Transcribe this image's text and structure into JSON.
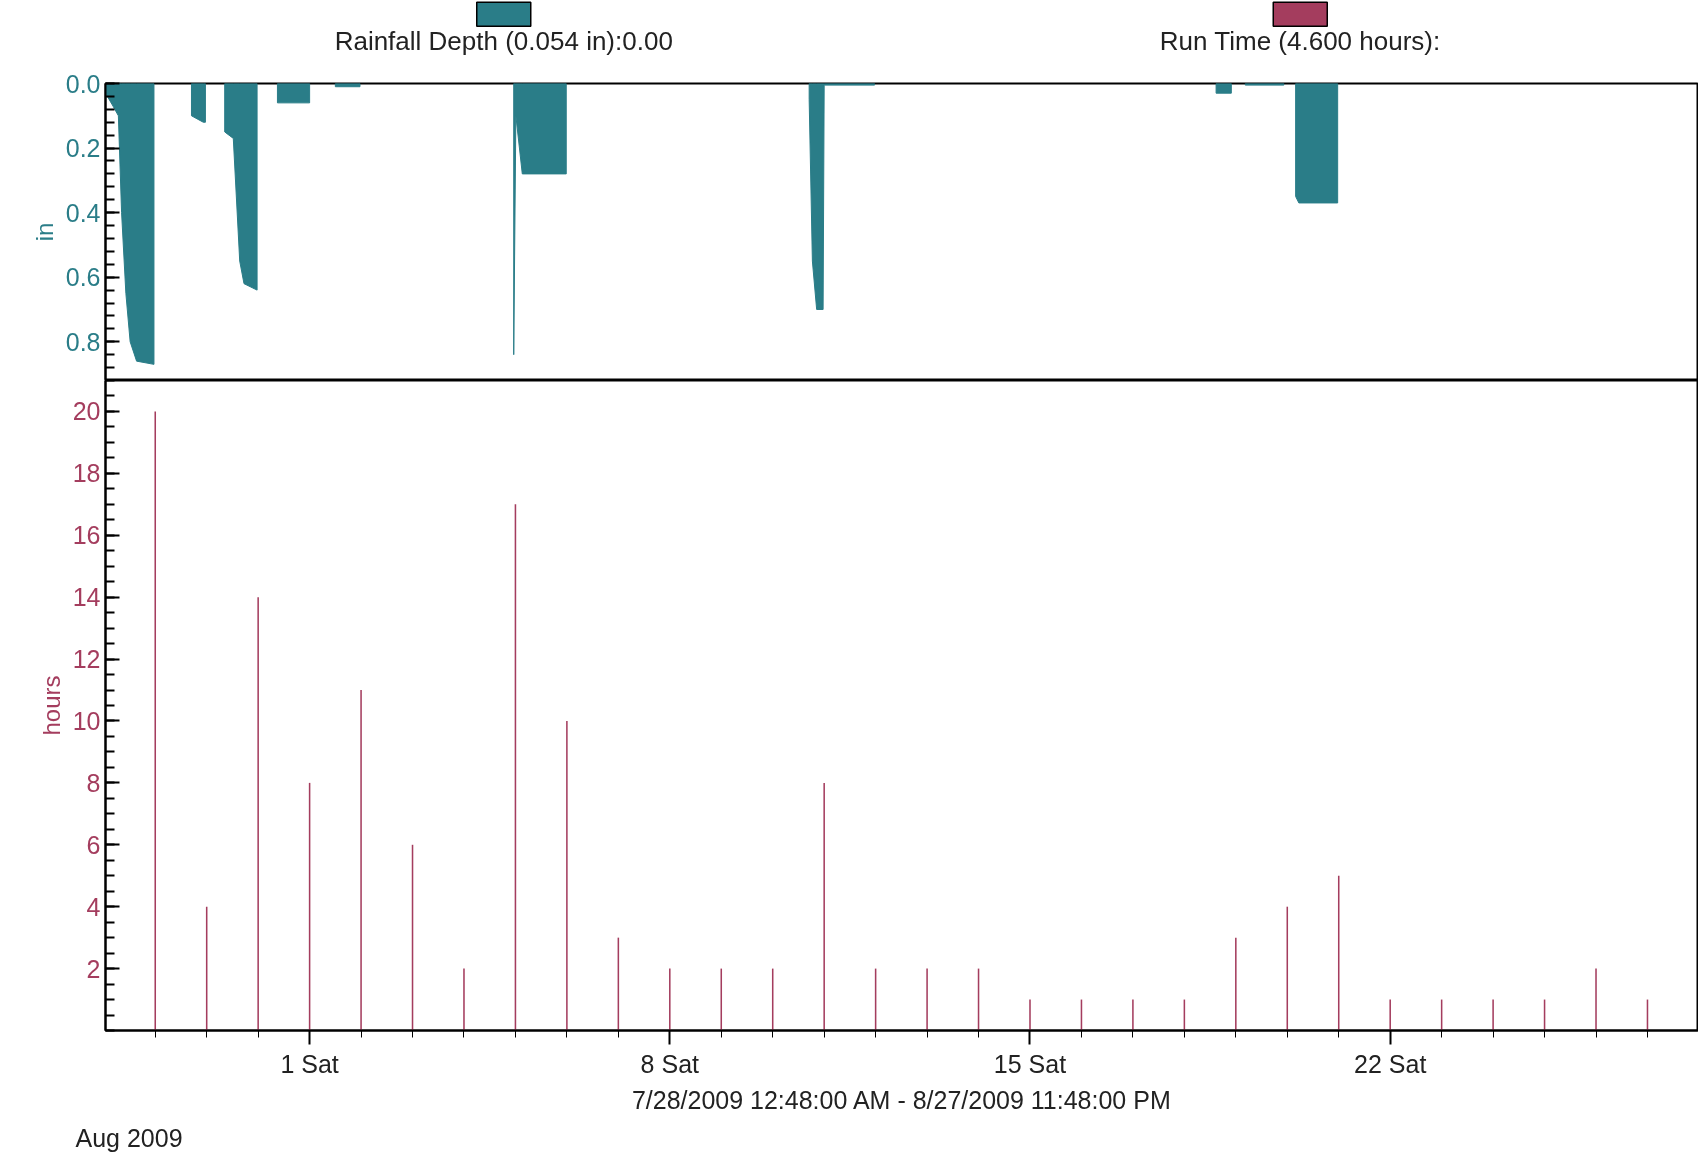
{
  "chart_data": [
    {
      "type": "area",
      "ylabel": "in",
      "legend": "top",
      "grid": false,
      "xlim": [
        "2009-07-28T00:48",
        "2009-08-27T23:48"
      ],
      "ylim": [
        0.92,
        0.0
      ],
      "yticks": [
        {
          "value": 0.0,
          "label": "0.0"
        },
        {
          "value": 0.2,
          "label": "0.2"
        },
        {
          "value": 0.4,
          "label": "0.4"
        },
        {
          "value": 0.6,
          "label": "0.6"
        },
        {
          "value": 0.8,
          "label": "0.8"
        }
      ],
      "series": [
        {
          "name": "Rainfall Depth (0.054 in):0.00",
          "color": "#2a7d88",
          "x": [
            "2009-07-28T00:48",
            "2009-07-28T04:18",
            "2009-07-28T06:48",
            "2009-07-28T08:18",
            "2009-07-28T10:18",
            "2009-07-28T12:18",
            "2009-07-28T15:18",
            "2009-07-28T23:24",
            "2009-07-29T12:00",
            "2009-07-29T16:54",
            "2009-07-29T22:24",
            "2009-07-29T23:24",
            "2009-07-30T04:00",
            "2009-07-30T08:24",
            "2009-07-30T12:24",
            "2009-07-30T15:24",
            "2009-07-30T17:24",
            "2009-07-30T23:30",
            "2009-07-31T04:00",
            "2009-07-31T09:00",
            "2009-08-01T00:00",
            "2009-08-01T06:00",
            "2009-08-01T12:00",
            "2009-08-01T23:30",
            "2009-08-03T00:00",
            "2009-08-04T23:12",
            "2009-08-05T00:12",
            "2009-08-05T03:12",
            "2009-08-05T23:42",
            "2009-08-08T00:00",
            "2009-08-10T17:00",
            "2009-08-10T18:30",
            "2009-08-10T20:30",
            "2009-08-10T23:30",
            "2009-08-11T00:00",
            "2009-08-11T23:30",
            "2009-08-15T00:00",
            "2009-08-18T14:48",
            "2009-08-18T21:54",
            "2009-08-19T01:00",
            "2009-08-19T04:24",
            "2009-08-19T22:24",
            "2009-08-20T01:00",
            "2009-08-20T03:54",
            "2009-08-20T05:24",
            "2009-08-20T23:30"
          ],
          "values": [
            0.03,
            0.07,
            0.1,
            0.4,
            0.65,
            0.8,
            0.86,
            0.87,
            null,
            0.1,
            0.12,
            0.12,
            null,
            0.15,
            0.17,
            0.55,
            0.62,
            0.64,
            null,
            0.06,
            0.06,
            null,
            0.01,
            0.01,
            null,
            0.84,
            0.1,
            0.28,
            0.28,
            null,
            0.05,
            0.55,
            0.7,
            0.7,
            0.005,
            0.005,
            null,
            0.03,
            0.03,
            null,
            0.005,
            0.005,
            null,
            0.35,
            0.37,
            0.37
          ]
        }
      ]
    },
    {
      "type": "bar",
      "ylabel": "hours",
      "xlabel": "7/28/2009 12:48:00 AM - 8/27/2009 11:48:00 PM",
      "legend": "top",
      "grid": false,
      "annotations": [
        "Aug 2009"
      ],
      "xlim": [
        "2009-07-28T00:48",
        "2009-08-27T23:48"
      ],
      "xticks": [
        {
          "value": "2009-08-01",
          "label": "1 Sat"
        },
        {
          "value": "2009-08-08",
          "label": "8 Sat"
        },
        {
          "value": "2009-08-15",
          "label": "15 Sat"
        },
        {
          "value": "2009-08-22",
          "label": "22 Sat"
        }
      ],
      "ylim": [
        0,
        21
      ],
      "yticks": [
        2,
        4,
        6,
        8,
        10,
        12,
        14,
        16,
        18,
        20
      ],
      "series": [
        {
          "name": "Run Time (4.600 hours):",
          "color": "#a43d5e",
          "x": [
            "2009-07-29",
            "2009-07-30",
            "2009-07-31",
            "2009-08-01",
            "2009-08-02",
            "2009-08-03",
            "2009-08-04",
            "2009-08-05",
            "2009-08-06",
            "2009-08-07",
            "2009-08-08",
            "2009-08-09",
            "2009-08-10",
            "2009-08-11",
            "2009-08-12",
            "2009-08-13",
            "2009-08-14",
            "2009-08-15",
            "2009-08-16",
            "2009-08-17",
            "2009-08-18",
            "2009-08-19",
            "2009-08-20",
            "2009-08-21",
            "2009-08-22",
            "2009-08-23",
            "2009-08-24",
            "2009-08-25",
            "2009-08-26",
            "2009-08-27"
          ],
          "values": [
            20,
            4,
            14,
            8,
            11,
            6,
            2,
            17,
            10,
            3,
            2,
            2,
            2,
            8,
            2,
            2,
            2,
            1,
            1,
            1,
            1,
            3,
            4,
            5,
            1,
            1,
            1,
            1,
            2,
            1
          ]
        }
      ]
    }
  ]
}
